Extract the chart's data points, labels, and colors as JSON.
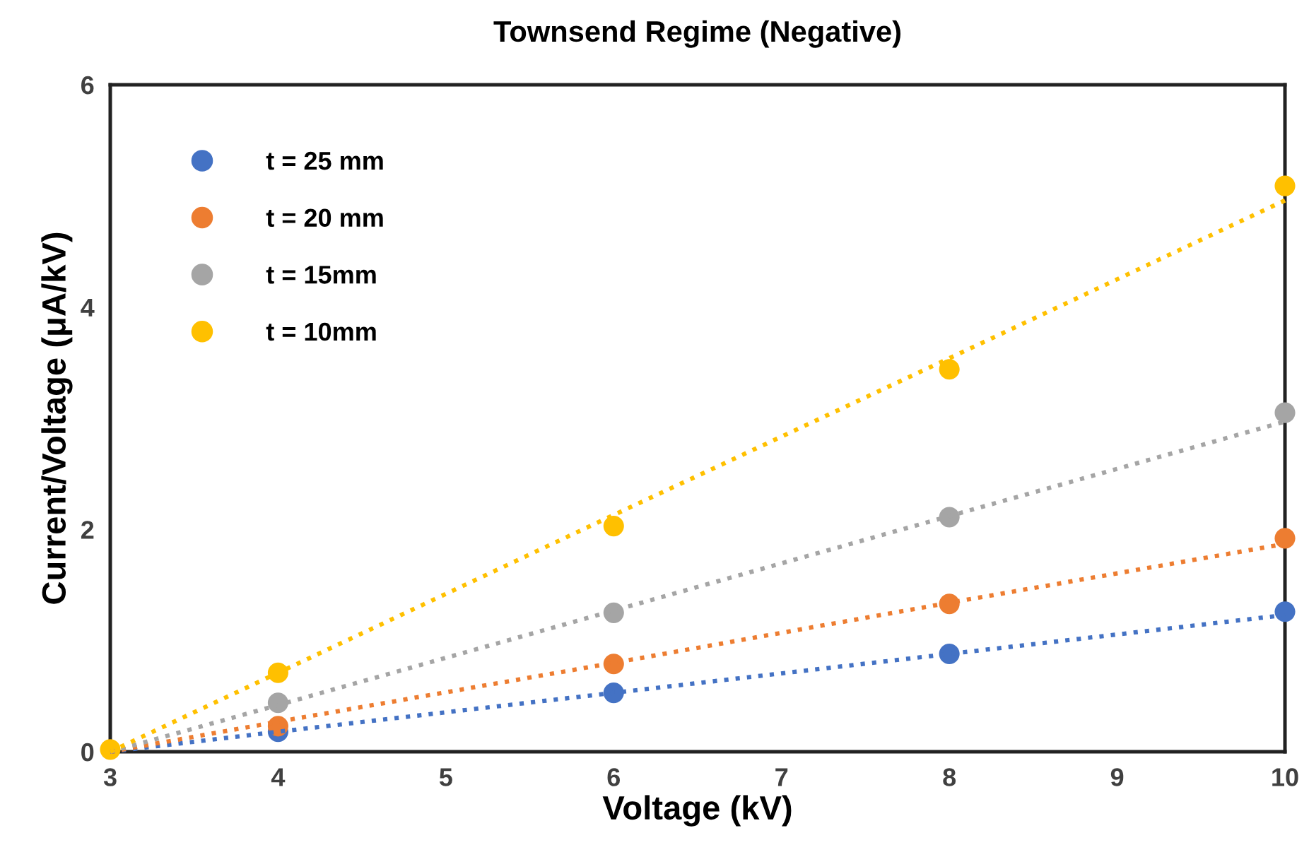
{
  "chart_data": {
    "type": "scatter",
    "title": "Townsend Regime (Negative)",
    "xlabel": "Voltage (kV)",
    "ylabel": "Current/Voltage (μA/kV)",
    "x": [
      3,
      4,
      6,
      8,
      10
    ],
    "series": [
      {
        "name": "t = 25 mm",
        "color": "#4472c4",
        "values": [
          null,
          0.18,
          0.53,
          0.88,
          1.26
        ]
      },
      {
        "name": "t = 20 mm",
        "color": "#ed7d31",
        "values": [
          null,
          0.23,
          0.79,
          1.33,
          1.92
        ]
      },
      {
        "name": "t = 15mm",
        "color": "#a5a5a5",
        "values": [
          null,
          0.44,
          1.25,
          2.11,
          3.05
        ]
      },
      {
        "name": "t = 10mm",
        "color": "#ffc000",
        "values": [
          0.02,
          0.71,
          2.03,
          3.44,
          5.09
        ]
      },
      {
        "type": "line",
        "color": "#4472c4",
        "values": [
          0,
          0.18,
          0.53,
          0.88,
          1.23
        ],
        "line_style": "dotted",
        "marker": "none"
      },
      {
        "type": "line",
        "color": "#ed7d31",
        "values": [
          0,
          0.27,
          0.8,
          1.34,
          1.87
        ],
        "line_style": "dotted",
        "marker": "none"
      },
      {
        "type": "line",
        "color": "#a5a5a5",
        "values": [
          0,
          0.42,
          1.27,
          2.12,
          2.97
        ],
        "line_style": "dotted",
        "marker": "none"
      },
      {
        "type": "line",
        "color": "#ffc000",
        "values": [
          0,
          0.71,
          2.13,
          3.54,
          4.96
        ],
        "line_style": "dotted",
        "marker": "none"
      }
    ],
    "xlim": [
      3,
      10
    ],
    "xticks": [
      3,
      4,
      5,
      6,
      7,
      8,
      9,
      10
    ],
    "ylim": [
      0,
      6
    ],
    "yticks": [
      0,
      2,
      4,
      6
    ],
    "marker": "circle",
    "legend": "top left",
    "grid": false
  }
}
